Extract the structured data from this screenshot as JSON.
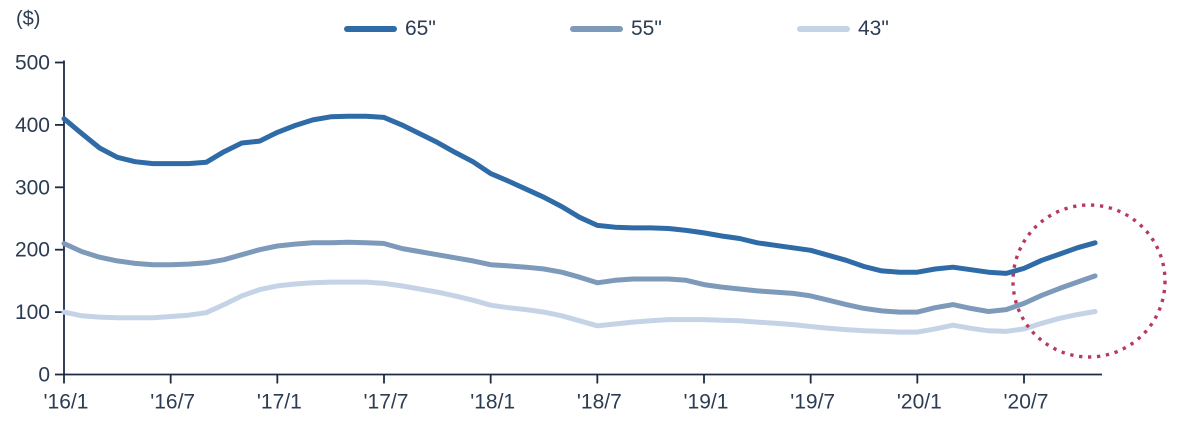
{
  "page": {
    "background": "#ffffff"
  },
  "colors": {
    "axis": "#1c2b44",
    "text": "#2c3c52",
    "annotation_circle": "#b9395e"
  },
  "chart_data": {
    "type": "line",
    "title": "",
    "unit_label": "($)",
    "legend_position": "top",
    "grid": false,
    "y_axis": {
      "min": 0,
      "max": 500,
      "tick_interval": 100,
      "tick_labels": [
        "0",
        "100",
        "200",
        "300",
        "400",
        "500"
      ]
    },
    "x_axis": {
      "start_month": "2016-01",
      "frequency": "monthly",
      "n_points": 59,
      "tick_labels": [
        "'16/1",
        "'16/7",
        "'17/1",
        "'17/7",
        "'18/1",
        "'18/7",
        "'19/1",
        "'19/7",
        "'20/1",
        "'20/7"
      ],
      "tick_point_indices": [
        0,
        6,
        12,
        18,
        24,
        30,
        36,
        42,
        48,
        54
      ]
    },
    "series": [
      {
        "name": "65\"",
        "color": "#2f6ba6",
        "values": [
          410,
          386,
          363,
          348,
          341,
          338,
          338,
          338,
          340,
          357,
          371,
          374,
          388,
          399,
          408,
          413,
          414,
          414,
          412,
          400,
          386,
          372,
          356,
          341,
          322,
          310,
          297,
          284,
          269,
          252,
          239,
          236,
          235,
          235,
          234,
          231,
          227,
          222,
          218,
          211,
          207,
          203,
          199,
          191,
          183,
          173,
          166,
          164,
          164,
          169,
          172,
          168,
          164,
          162,
          170,
          183,
          193,
          203,
          211
        ]
      },
      {
        "name": "55\"",
        "color": "#7d9aba",
        "values": [
          210,
          197,
          188,
          182,
          178,
          176,
          176,
          177,
          179,
          184,
          192,
          200,
          206,
          209,
          211,
          211,
          212,
          211,
          210,
          202,
          197,
          192,
          187,
          182,
          176,
          174,
          172,
          169,
          164,
          156,
          147,
          151,
          153,
          153,
          153,
          151,
          144,
          140,
          137,
          134,
          132,
          130,
          126,
          119,
          112,
          106,
          102,
          100,
          100,
          107,
          112,
          106,
          101,
          104,
          114,
          127,
          138,
          148,
          158
        ]
      },
      {
        "name": "43\"",
        "color": "#c5d3e7",
        "values": [
          100,
          94,
          92,
          91,
          91,
          91,
          93,
          95,
          99,
          112,
          126,
          136,
          142,
          145,
          147,
          148,
          148,
          148,
          146,
          142,
          137,
          132,
          126,
          119,
          111,
          107,
          104,
          100,
          94,
          86,
          78,
          81,
          84,
          86,
          88,
          88,
          88,
          87,
          86,
          84,
          82,
          80,
          77,
          74,
          72,
          70,
          69,
          68,
          68,
          73,
          79,
          74,
          70,
          69,
          73,
          82,
          90,
          96,
          101
        ]
      }
    ],
    "annotation": {
      "type": "dotted-circle",
      "highlights": "price uptick in latest months",
      "color": "#b9395e"
    }
  }
}
